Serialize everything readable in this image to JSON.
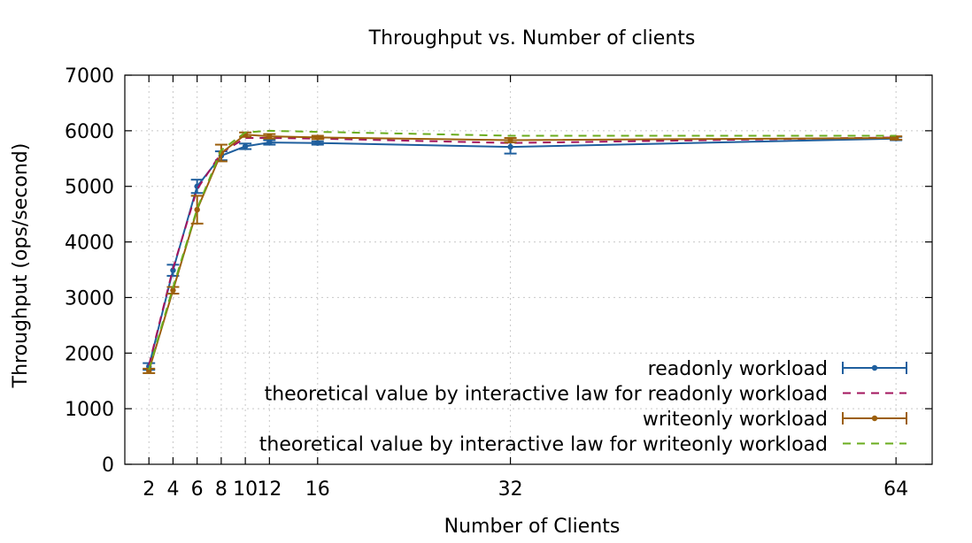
{
  "chart_data": {
    "type": "line",
    "title": "Throughput vs. Number of clients",
    "xlabel": "Number of Clients",
    "ylabel": "Throughput (ops/second)",
    "xlim": [
      0,
      67
    ],
    "ylim": [
      0,
      7000
    ],
    "x_ticks": [
      2,
      4,
      6,
      8,
      10,
      12,
      16,
      32,
      64
    ],
    "y_ticks": [
      0,
      1000,
      2000,
      3000,
      4000,
      5000,
      6000,
      7000
    ],
    "grid": true,
    "legend_position": "bottom-right",
    "series": [
      {
        "name": "readonly workload",
        "style": "solid-errorbars",
        "color": "#1f5f9e",
        "x": [
          2,
          4,
          6,
          8,
          10,
          12,
          16,
          32,
          64
        ],
        "y": [
          1760,
          3490,
          5000,
          5550,
          5720,
          5790,
          5780,
          5710,
          5860
        ],
        "err": [
          60,
          100,
          120,
          80,
          50,
          40,
          30,
          120,
          30
        ]
      },
      {
        "name": "theoretical value by interactive law for readonly workload",
        "style": "dashed",
        "color": "#a3145e",
        "x": [
          2,
          4,
          6,
          8,
          10,
          12,
          16,
          32,
          64
        ],
        "y": [
          1780,
          3520,
          4950,
          5600,
          5870,
          5870,
          5860,
          5780,
          5880
        ]
      },
      {
        "name": "writeonly workload",
        "style": "solid-errorbars",
        "color": "#9c5f0c",
        "x": [
          2,
          4,
          6,
          8,
          10,
          12,
          16,
          32,
          64
        ],
        "y": [
          1680,
          3130,
          4580,
          5600,
          5930,
          5900,
          5880,
          5830,
          5870
        ],
        "err": [
          40,
          60,
          250,
          150,
          40,
          40,
          30,
          40,
          30
        ]
      },
      {
        "name": "theoretical value by interactive law for writeonly workload",
        "style": "dashed",
        "color": "#6aac1e",
        "x": [
          2,
          4,
          6,
          8,
          10,
          12,
          16,
          32,
          64
        ],
        "y": [
          1700,
          3180,
          4600,
          5650,
          5970,
          6000,
          5980,
          5910,
          5910
        ]
      }
    ]
  }
}
